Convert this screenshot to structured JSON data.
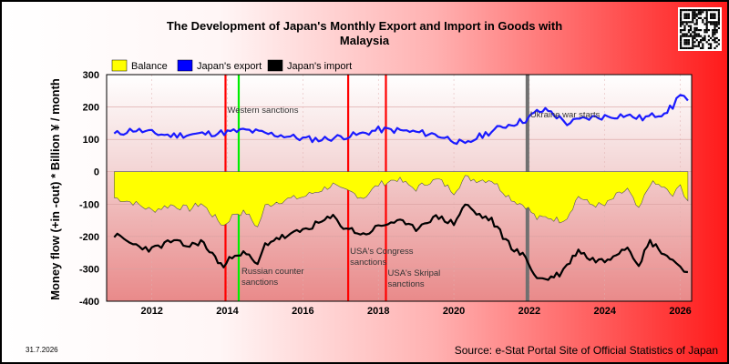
{
  "chart_data": {
    "type": "line",
    "title_lines": [
      "The Development of Japan's Monthly Export and Import in Goods with",
      "Malaysia"
    ],
    "ylabel": "Money flow (+in -out) * Billion ¥ / month",
    "ylim": [
      -400,
      300
    ],
    "yticks": [
      "300",
      "200",
      "100",
      "0",
      "-100",
      "-200",
      "-300",
      "-400"
    ],
    "xlim": [
      2010.8,
      2026.3
    ],
    "xticks": [
      "2012",
      "2014",
      "2016",
      "2018",
      "2020",
      "2022",
      "2024",
      "2026"
    ],
    "legend": [
      {
        "label": "Balance",
        "color": "#ffff00"
      },
      {
        "label": "Japan's export",
        "color": "#0000ff"
      },
      {
        "label": "Japan's import",
        "color": "#000000"
      }
    ],
    "series": [
      {
        "name": "Japan's export",
        "color": "#1a1aff",
        "x": [
          2011.0,
          2011.5,
          2012.0,
          2012.5,
          2013.0,
          2013.5,
          2014.0,
          2014.5,
          2015.0,
          2015.5,
          2016.0,
          2016.5,
          2017.0,
          2017.5,
          2018.0,
          2018.5,
          2019.0,
          2019.5,
          2020.0,
          2020.3,
          2020.6,
          2021.0,
          2021.3,
          2021.6,
          2021.9,
          2022.2,
          2022.5,
          2022.8,
          2023.0,
          2023.5,
          2024.0,
          2024.5,
          2025.0,
          2025.5,
          2025.8,
          2026.0,
          2026.2
        ],
        "values": [
          115,
          130,
          120,
          112,
          115,
          118,
          122,
          128,
          118,
          112,
          102,
          100,
          108,
          115,
          130,
          128,
          122,
          115,
          98,
          82,
          105,
          125,
          140,
          150,
          160,
          185,
          190,
          165,
          150,
          165,
          170,
          175,
          165,
          180,
          200,
          245,
          220
        ]
      },
      {
        "name": "Japan's import",
        "color": "#000000",
        "x": [
          2011.0,
          2011.5,
          2012.0,
          2012.5,
          2013.0,
          2013.3,
          2013.6,
          2013.9,
          2014.2,
          2014.5,
          2014.8,
          2015.0,
          2015.3,
          2015.6,
          2016.0,
          2016.5,
          2016.8,
          2017.0,
          2017.3,
          2017.6,
          2018.0,
          2018.5,
          2018.8,
          2019.0,
          2019.3,
          2019.6,
          2020.0,
          2020.3,
          2020.6,
          2021.0,
          2021.3,
          2021.6,
          2021.9,
          2022.2,
          2022.5,
          2022.8,
          2023.0,
          2023.3,
          2023.6,
          2024.0,
          2024.3,
          2024.6,
          2024.9,
          2025.2,
          2025.5,
          2025.8,
          2026.0,
          2026.2
        ],
        "values": [
          -195,
          -225,
          -240,
          -215,
          -230,
          -215,
          -255,
          -295,
          -250,
          -255,
          -290,
          -225,
          -205,
          -200,
          -180,
          -155,
          -140,
          -165,
          -180,
          -195,
          -170,
          -150,
          -170,
          -175,
          -150,
          -140,
          -160,
          -100,
          -130,
          -150,
          -200,
          -240,
          -265,
          -330,
          -330,
          -315,
          -290,
          -240,
          -270,
          -275,
          -250,
          -230,
          -285,
          -215,
          -245,
          -275,
          -290,
          -310
        ]
      },
      {
        "name": "Balance",
        "color": "#ffff00",
        "x": [
          2011.0,
          2011.5,
          2012.0,
          2012.5,
          2013.0,
          2013.3,
          2013.6,
          2013.9,
          2014.2,
          2014.5,
          2014.8,
          2015.0,
          2015.3,
          2015.6,
          2016.0,
          2016.5,
          2016.8,
          2017.0,
          2017.3,
          2017.6,
          2018.0,
          2018.5,
          2018.8,
          2019.0,
          2019.3,
          2019.6,
          2020.0,
          2020.3,
          2020.6,
          2021.0,
          2021.3,
          2021.6,
          2021.9,
          2022.2,
          2022.5,
          2022.8,
          2023.0,
          2023.3,
          2023.6,
          2024.0,
          2024.3,
          2024.6,
          2024.9,
          2025.2,
          2025.5,
          2025.8,
          2026.0,
          2026.2
        ],
        "values": [
          -80,
          -95,
          -120,
          -103,
          -115,
          -97,
          -133,
          -167,
          -128,
          -127,
          -172,
          -107,
          -93,
          -85,
          -78,
          -55,
          -40,
          -57,
          -65,
          -80,
          -40,
          -22,
          -42,
          -53,
          -32,
          -25,
          -62,
          -18,
          -25,
          -25,
          -60,
          -90,
          -105,
          -145,
          -140,
          -150,
          -140,
          -75,
          -100,
          -105,
          -75,
          -55,
          -120,
          -35,
          -45,
          -75,
          -45,
          -90
        ]
      }
    ],
    "events": [
      {
        "x": 2013.95,
        "color": "#ff0000",
        "label": "Western sanctions"
      },
      {
        "x": 2014.3,
        "color": "#00ee00",
        "label": "Russian counter sanctions"
      },
      {
        "x": 2017.2,
        "color": "#ff0000",
        "label": "USA's Congress sanctions"
      },
      {
        "x": 2018.2,
        "color": "#ff0000",
        "label": "USA's Skripal sanctions"
      },
      {
        "x": 2021.95,
        "color": "#707070",
        "label": "Ukraine war starts"
      }
    ],
    "source": "Source: e-Stat Portal Site of Official Statistics of Japan",
    "datestamp": "31.7.2026"
  }
}
